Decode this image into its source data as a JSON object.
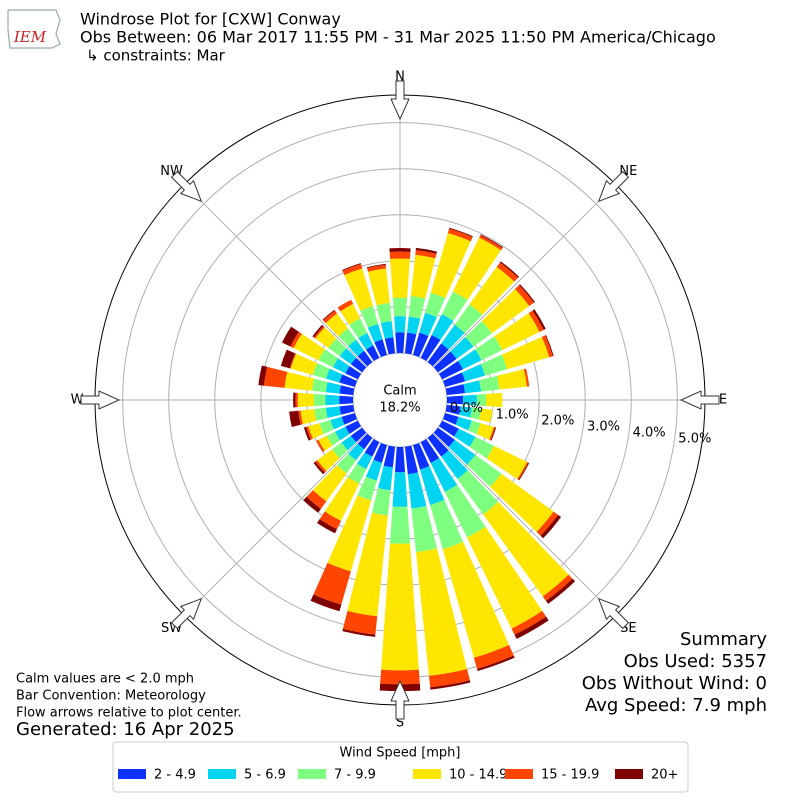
{
  "chart_data": {
    "type": "windrose",
    "logo_text": "IEM",
    "title": "Windrose Plot for [CXW] Conway",
    "subtitle": "Obs Between: 06 Mar 2017 11:55 PM - 31 Mar 2025 11:50 PM America/Chicago",
    "constraints": "↳ constraints: Mar",
    "calm": {
      "label": "Calm",
      "value": 18.2,
      "value_label": "18.2%"
    },
    "rlim": [
      0,
      5.6
    ],
    "rticks": [
      {
        "value": 0,
        "label": "0.0%"
      },
      {
        "value": 1,
        "label": "1.0%"
      },
      {
        "value": 2,
        "label": "2.0%"
      },
      {
        "value": 3,
        "label": "3.0%"
      },
      {
        "value": 4,
        "label": "4.0%"
      },
      {
        "value": 5,
        "label": "5.0%"
      }
    ],
    "compass": [
      {
        "value": 0,
        "label": "N"
      },
      {
        "value": 45,
        "label": "NE"
      },
      {
        "value": 90,
        "label": "E"
      },
      {
        "value": 135,
        "label": "SE"
      },
      {
        "value": 180,
        "label": "S"
      },
      {
        "value": 225,
        "label": "SW"
      },
      {
        "value": 270,
        "label": "W"
      },
      {
        "value": 315,
        "label": "NW"
      }
    ],
    "x": [
      0,
      10,
      20,
      30,
      40,
      50,
      60,
      70,
      80,
      90,
      100,
      110,
      120,
      130,
      140,
      150,
      160,
      170,
      180,
      190,
      200,
      210,
      220,
      230,
      240,
      250,
      260,
      270,
      280,
      290,
      300,
      310,
      320,
      330,
      340,
      350
    ],
    "series": [
      {
        "name": "2 - 4.9",
        "color": "#0d32ff",
        "values": [
          0.45,
          0.45,
          0.5,
          0.55,
          0.5,
          0.5,
          0.5,
          0.45,
          0.4,
          0.35,
          0.3,
          0.3,
          0.4,
          0.45,
          0.5,
          0.5,
          0.55,
          0.6,
          0.55,
          0.45,
          0.4,
          0.35,
          0.3,
          0.3,
          0.3,
          0.3,
          0.3,
          0.3,
          0.3,
          0.35,
          0.3,
          0.3,
          0.3,
          0.3,
          0.35,
          0.35
        ]
      },
      {
        "name": "5 - 6.9",
        "color": "#00d4f0",
        "values": [
          0.35,
          0.35,
          0.45,
          0.5,
          0.5,
          0.45,
          0.45,
          0.45,
          0.35,
          0.3,
          0.25,
          0.3,
          0.4,
          0.55,
          0.6,
          0.7,
          0.8,
          0.75,
          0.75,
          0.5,
          0.4,
          0.3,
          0.3,
          0.25,
          0.25,
          0.25,
          0.3,
          0.3,
          0.3,
          0.3,
          0.3,
          0.3,
          0.3,
          0.3,
          0.35,
          0.35
        ]
      },
      {
        "name": "7 - 9.9",
        "color": "#7fff7f",
        "values": [
          0.4,
          0.45,
          0.45,
          0.55,
          0.55,
          0.5,
          0.5,
          0.5,
          0.4,
          0.2,
          0.2,
          0.2,
          0.45,
          0.7,
          0.95,
          1.1,
          1.0,
          0.95,
          0.8,
          0.55,
          0.45,
          0.35,
          0.35,
          0.25,
          0.2,
          0.25,
          0.25,
          0.25,
          0.3,
          0.3,
          0.35,
          0.3,
          0.3,
          0.35,
          0.4,
          0.4
        ]
      },
      {
        "name": "10 - 14.9",
        "color": "#ffe600",
        "values": [
          0.85,
          0.9,
          1.35,
          1.3,
          1.0,
          1.0,
          0.9,
          0.95,
          0.6,
          0.35,
          0.25,
          0.3,
          0.8,
          1.4,
          2.2,
          2.2,
          2.45,
          2.7,
          2.75,
          2.2,
          1.6,
          0.9,
          0.75,
          0.4,
          0.2,
          0.25,
          0.3,
          0.35,
          0.6,
          0.5,
          0.6,
          0.35,
          0.4,
          0.35,
          0.85,
          0.75
        ]
      },
      {
        "name": "15 - 19.9",
        "color": "#ff4500",
        "values": [
          0.15,
          0.1,
          0.1,
          0.06,
          0.12,
          0.12,
          0.1,
          0.08,
          0.05,
          0,
          0,
          0.03,
          0.03,
          0.12,
          0.12,
          0.15,
          0.25,
          0.25,
          0.3,
          0.4,
          0.75,
          0.2,
          0.2,
          0.05,
          0.05,
          0.05,
          0.05,
          0.05,
          0.45,
          0.02,
          0.08,
          0.04,
          0.08,
          0.1,
          0.1,
          0.08
        ]
      },
      {
        "name": "20+",
        "color": "#7f0000",
        "values": [
          0.08,
          0.05,
          0.02,
          0.02,
          0.03,
          0.03,
          0.05,
          0.02,
          0,
          0,
          0,
          0.02,
          0.02,
          0.08,
          0.08,
          0.1,
          0.05,
          0.05,
          0.15,
          0.05,
          0.15,
          0.1,
          0.1,
          0.05,
          0,
          0.05,
          0.2,
          0.05,
          0.12,
          0.2,
          0.2,
          0.04,
          0.02,
          0,
          0.02,
          0.02
        ]
      }
    ],
    "legend_title": "Wind Speed [mph]",
    "summary": [
      "Summary",
      "Obs Used: 5357",
      "Obs Without Wind: 0",
      "Avg Speed: 7.9 mph"
    ],
    "notes": [
      "Calm values are < 2.0 mph",
      "Bar Convention: Meteorology",
      "Flow arrows relative to plot center."
    ],
    "generated": "Generated: 16 Apr 2025"
  }
}
